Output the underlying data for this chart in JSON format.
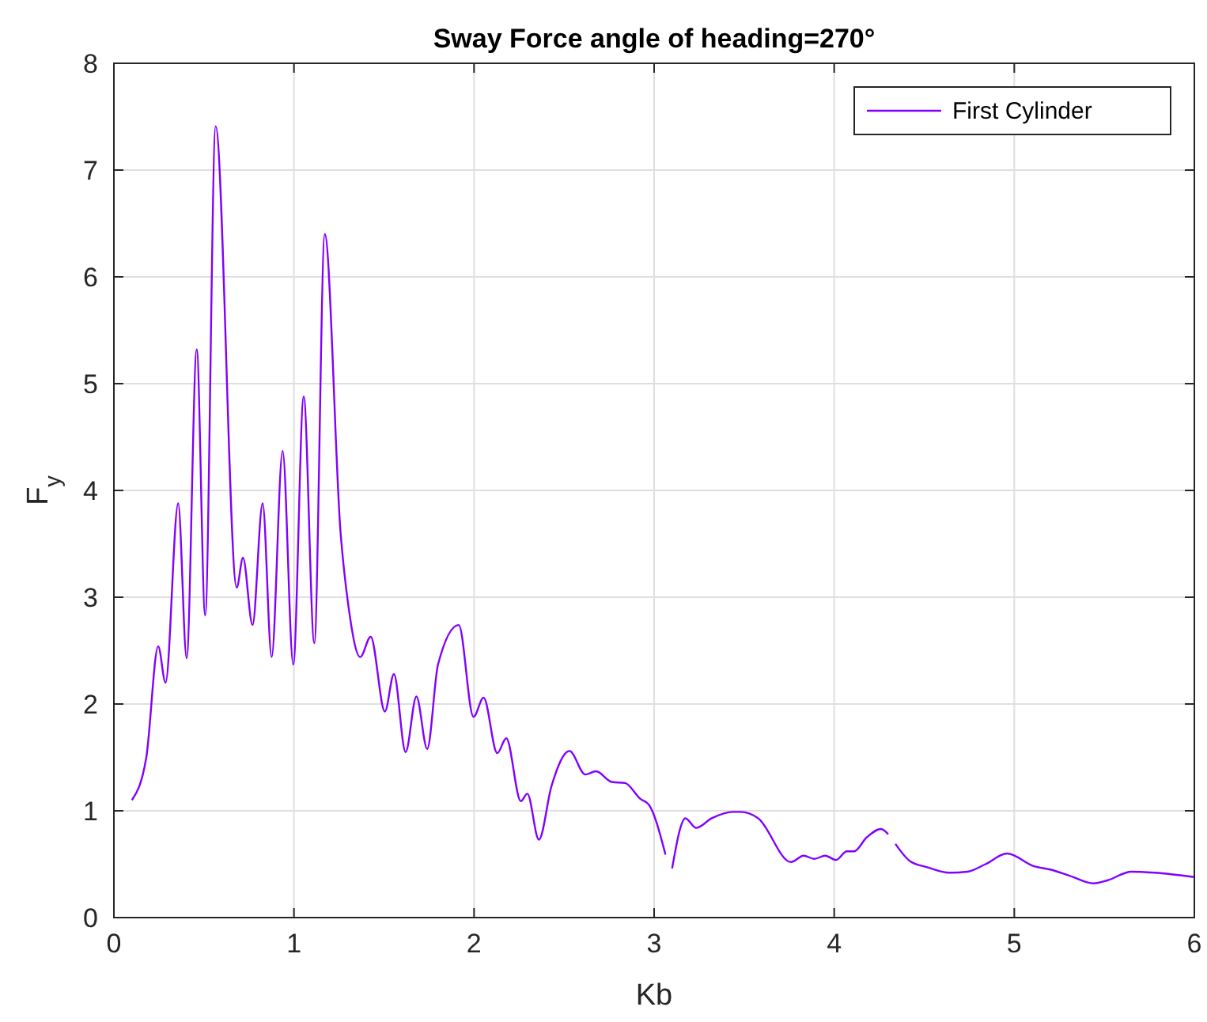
{
  "chart_data": {
    "type": "line",
    "title": "Sway Force angle of heading=270°",
    "xlabel": "Kb",
    "ylabel": "F$_{y}$",
    "xlim": [
      0,
      6
    ],
    "xticks": [
      0,
      1,
      2,
      3,
      4,
      5,
      6
    ],
    "ylim": [
      0,
      8
    ],
    "yticks": [
      0,
      1,
      2,
      3,
      4,
      5,
      6,
      7,
      8
    ],
    "grid": true,
    "legend": "top right",
    "series": [
      {
        "name": "First Cylinder",
        "color": "#8000ff",
        "x": [
          0.1,
          0.18,
          0.246,
          0.287,
          0.357,
          0.404,
          0.46,
          0.507,
          0.565,
          0.682,
          0.717,
          0.77,
          0.826,
          0.876,
          0.937,
          0.996,
          1.054,
          1.113,
          1.171,
          1.259,
          1.303,
          1.368,
          1.426,
          1.505,
          1.555,
          1.62,
          1.68,
          1.74,
          1.8,
          1.915,
          1.997,
          2.053,
          2.129,
          2.179,
          2.26,
          2.296,
          2.36,
          2.43,
          2.53,
          2.618,
          2.677,
          2.765,
          2.838,
          2.925,
          2.97,
          3.063,
          3.08,
          3.1,
          3.174,
          3.233,
          3.32,
          3.438,
          3.48,
          3.578,
          3.76,
          3.83,
          3.89,
          3.95,
          4.01,
          4.07,
          4.11,
          4.18,
          4.26,
          4.3,
          4.32,
          4.34,
          4.42,
          4.52,
          4.64,
          4.74,
          4.84,
          4.96,
          5.11,
          5.2,
          5.31,
          5.44,
          5.52,
          5.65,
          5.78,
          6.0
        ],
        "values": [
          1.1,
          1.5,
          2.54,
          2.2,
          3.88,
          2.43,
          5.32,
          2.83,
          7.41,
          3.09,
          3.37,
          2.74,
          3.88,
          2.44,
          4.37,
          2.37,
          4.88,
          2.57,
          6.4,
          3.6,
          2.91,
          2.44,
          2.63,
          1.93,
          2.28,
          1.55,
          2.07,
          1.58,
          2.37,
          2.74,
          1.88,
          2.06,
          1.54,
          1.68,
          1.09,
          1.16,
          0.73,
          1.23,
          1.56,
          1.34,
          1.37,
          1.27,
          1.26,
          1.11,
          1.06,
          0.59,
          null,
          0.46,
          0.93,
          0.84,
          0.93,
          0.99,
          0.99,
          0.93,
          0.52,
          0.58,
          0.55,
          0.58,
          0.54,
          0.62,
          0.62,
          0.75,
          0.83,
          0.78,
          null,
          0.69,
          0.53,
          0.47,
          0.42,
          0.43,
          0.5,
          0.6,
          0.48,
          0.45,
          0.39,
          0.32,
          0.35,
          0.43,
          0.42,
          0.38
        ]
      }
    ]
  }
}
